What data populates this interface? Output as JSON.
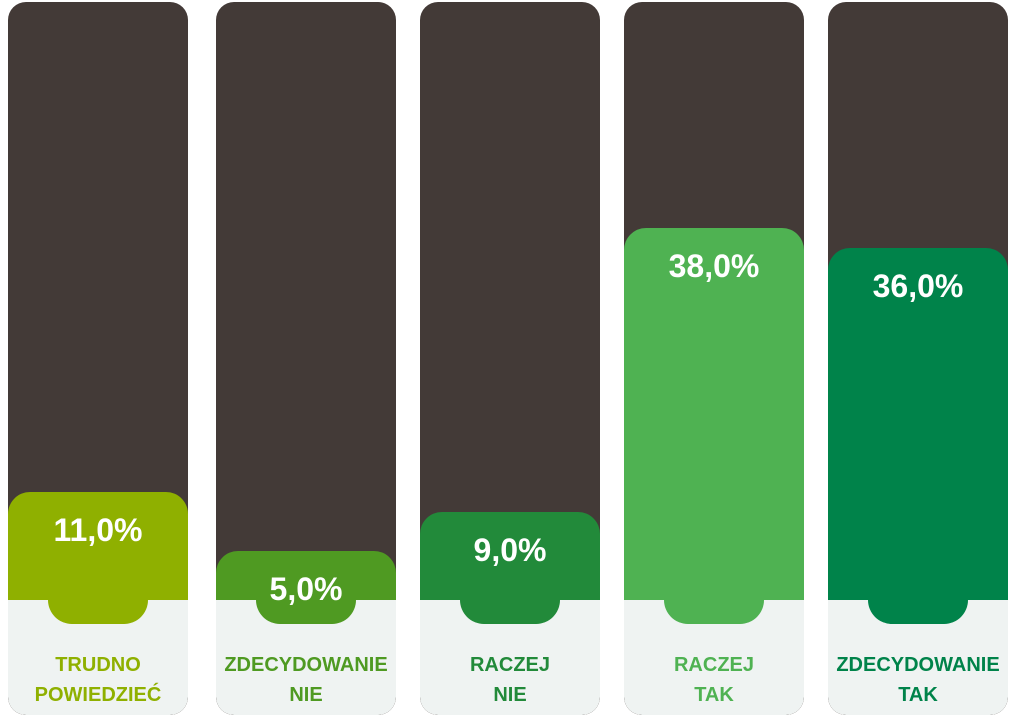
{
  "chart_data": {
    "type": "bar",
    "categories": [
      "TRUDNO\nPOWIEDZIEĆ",
      "ZDECYDOWANIE\nNIE",
      "RACZEJ\nNIE",
      "RACZEJ\nTAK",
      "ZDECYDOWANIE\nTAK"
    ],
    "values": [
      11.0,
      5.0,
      9.0,
      38.0,
      36.0
    ],
    "value_labels": [
      "11,0%",
      "5,0%",
      "9,0%",
      "38,0%",
      "36,0%"
    ],
    "colors": [
      "#8fb000",
      "#4f9a22",
      "#228a3a",
      "#4fb252",
      "#00834a"
    ]
  }
}
